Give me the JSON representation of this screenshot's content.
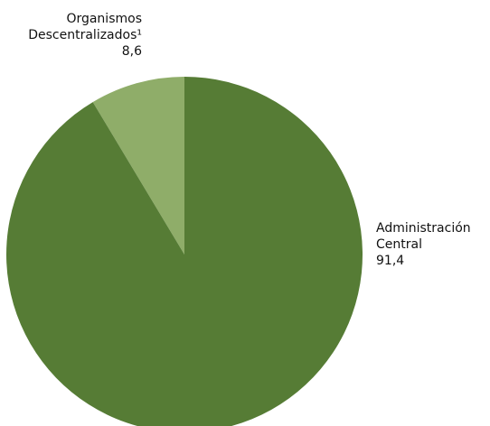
{
  "chart_data": {
    "type": "pie",
    "title": "",
    "slices": [
      {
        "line1": "Organismos",
        "line2": "Descentralizados¹",
        "value_label": "8,6",
        "value": 8.6,
        "color": "#8fad69"
      },
      {
        "line1": "Administración",
        "line2": "Central",
        "value_label": "91,4",
        "value": 91.4,
        "color": "#567c35"
      }
    ],
    "start_angle_deg": 0,
    "direction": "counterclockwise"
  }
}
